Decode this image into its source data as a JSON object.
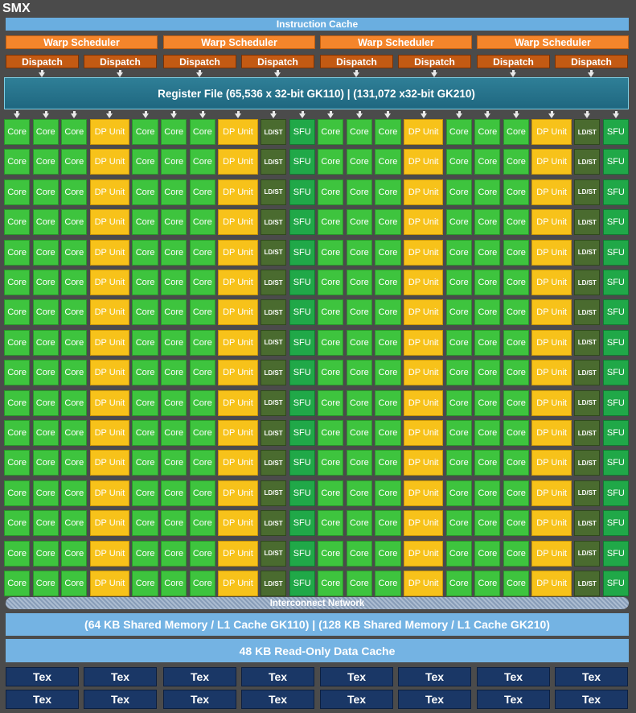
{
  "title": "SMX",
  "instruction_cache": "Instruction Cache",
  "warp_scheduler_label": "Warp Scheduler",
  "dispatch_label": "Dispatch",
  "register_file": "Register File (65,536 x 32-bit GK110) | (131,072 x32-bit GK210)",
  "unit_labels": {
    "core": "Core",
    "dp": "DP Unit",
    "ldst": "LD/ST",
    "sfu": "SFU"
  },
  "interconnect": "Interconnect Network",
  "shared_memory": "(64 KB Shared Memory / L1 Cache GK110) | (128 KB Shared Memory / L1 Cache GK210)",
  "readonly_cache": "48 KB Read-Only Data Cache",
  "tex_label": "Tex",
  "colors": {
    "core": "#3ec43e",
    "dp_unit": "#f7c21a",
    "ldst": "#4a6b2f",
    "sfu": "#20a848",
    "warp_scheduler": "#f4852b",
    "dispatch": "#c35a13",
    "register_file": "#1f6780",
    "cache": "#74b3e3",
    "tex": "#1a3766"
  }
}
